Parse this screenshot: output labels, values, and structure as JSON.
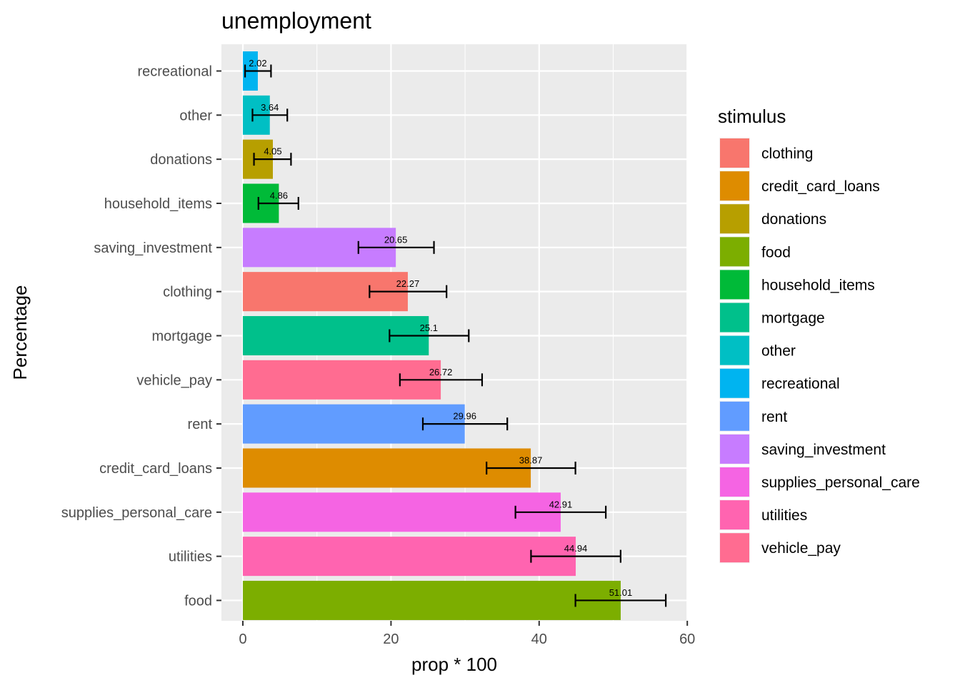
{
  "chart_data": {
    "type": "bar",
    "orientation": "horizontal",
    "title": "unemployment",
    "xlabel": "prop * 100",
    "ylabel": "Percentage",
    "xlim": [
      0,
      60
    ],
    "x_ticks": [
      0,
      20,
      40,
      60
    ],
    "grid": true,
    "legend_title": "stimulus",
    "legend_position": "right",
    "categories": [
      "recreational",
      "other",
      "donations",
      "household_items",
      "saving_investment",
      "clothing",
      "mortgage",
      "vehicle_pay",
      "rent",
      "credit_card_loans",
      "supplies_personal_care",
      "utilities",
      "food"
    ],
    "values": [
      2.02,
      3.64,
      4.05,
      4.86,
      20.65,
      22.27,
      25.1,
      26.72,
      29.96,
      38.87,
      42.91,
      44.94,
      51.01
    ],
    "value_labels": [
      "2.02",
      "3.64",
      "4.05",
      "4.86",
      "20.65",
      "22.27",
      "25.1",
      "26.72",
      "29.96",
      "38.87",
      "42.91",
      "44.94",
      "51.01"
    ],
    "error_low": [
      0.3,
      1.3,
      1.5,
      2.1,
      15.6,
      17.1,
      19.8,
      21.2,
      24.3,
      32.9,
      36.8,
      38.9,
      44.9
    ],
    "error_high": [
      3.8,
      6.0,
      6.5,
      7.5,
      25.8,
      27.5,
      30.5,
      32.3,
      35.7,
      44.9,
      49.0,
      51.0,
      57.1
    ],
    "legend": [
      {
        "label": "clothing",
        "color": "#F8766D"
      },
      {
        "label": "credit_card_loans",
        "color": "#DE8C00"
      },
      {
        "label": "donations",
        "color": "#B79F00"
      },
      {
        "label": "food",
        "color": "#7CAE00"
      },
      {
        "label": "household_items",
        "color": "#00BA38"
      },
      {
        "label": "mortgage",
        "color": "#00C08B"
      },
      {
        "label": "other",
        "color": "#00BFC4"
      },
      {
        "label": "recreational",
        "color": "#00B4F0"
      },
      {
        "label": "rent",
        "color": "#619CFF"
      },
      {
        "label": "saving_investment",
        "color": "#C77CFF"
      },
      {
        "label": "supplies_personal_care",
        "color": "#F564E3"
      },
      {
        "label": "utilities",
        "color": "#FF64B0"
      },
      {
        "label": "vehicle_pay",
        "color": "#FF6C91"
      }
    ]
  }
}
